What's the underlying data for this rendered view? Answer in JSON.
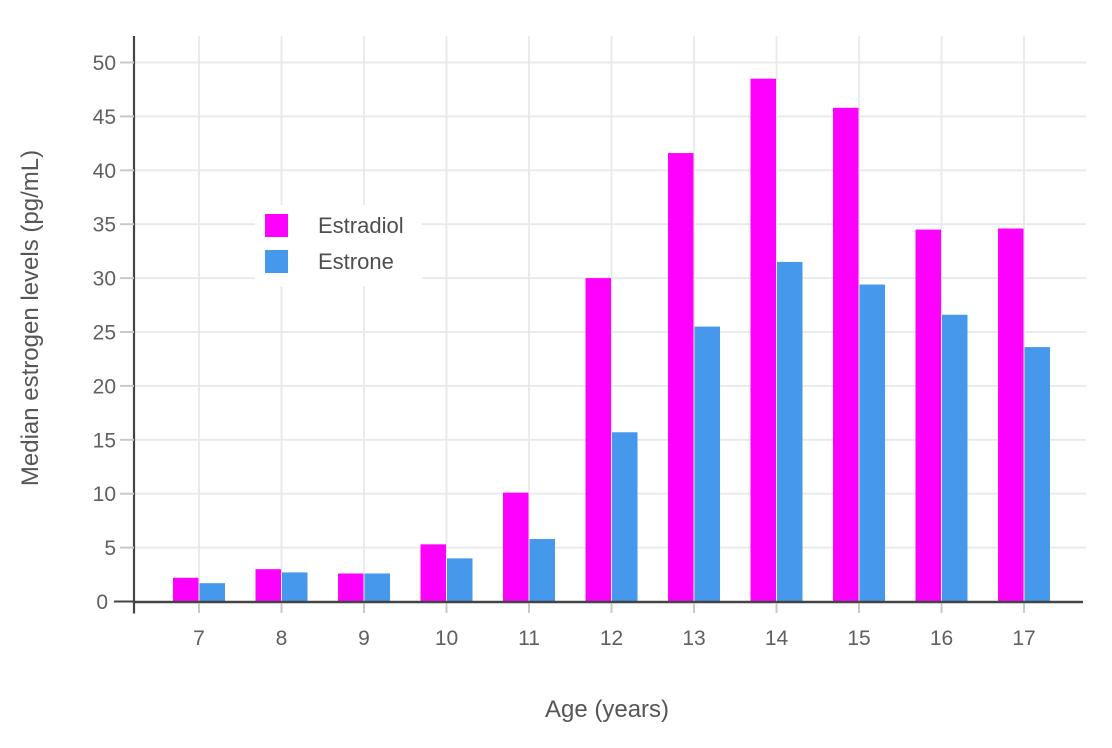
{
  "chart_data": {
    "type": "bar",
    "grouping": "grouped",
    "title": "",
    "xlabel": "Age (years)",
    "ylabel": "Median estrogen levels (pg/mL)",
    "categories": [
      "7",
      "8",
      "9",
      "10",
      "11",
      "12",
      "13",
      "14",
      "15",
      "16",
      "17"
    ],
    "series": [
      {
        "name": "Estradiol",
        "color": "#FF00FF",
        "values": [
          2.2,
          3.0,
          2.6,
          5.3,
          10.1,
          30.0,
          41.6,
          48.5,
          45.8,
          34.5,
          34.6
        ]
      },
      {
        "name": "Estrone",
        "color": "#4598EB",
        "values": [
          1.7,
          2.7,
          2.6,
          4.0,
          5.8,
          15.7,
          25.5,
          31.5,
          29.4,
          26.6,
          23.6
        ]
      }
    ],
    "yticks": [
      0,
      5,
      10,
      15,
      20,
      25,
      30,
      35,
      40,
      45,
      50
    ],
    "ylim": [
      0,
      52.4
    ],
    "grid": true,
    "legend_position": "inside-top-left",
    "colors": {
      "background": "#FFFFFF",
      "axis_line": "#444444",
      "gridline": "#E9E9E9",
      "tick_mark": "#C9C9C9",
      "tick_label": "#606060",
      "axis_title": "#565656",
      "legend_text": "#4E4E4E"
    }
  }
}
